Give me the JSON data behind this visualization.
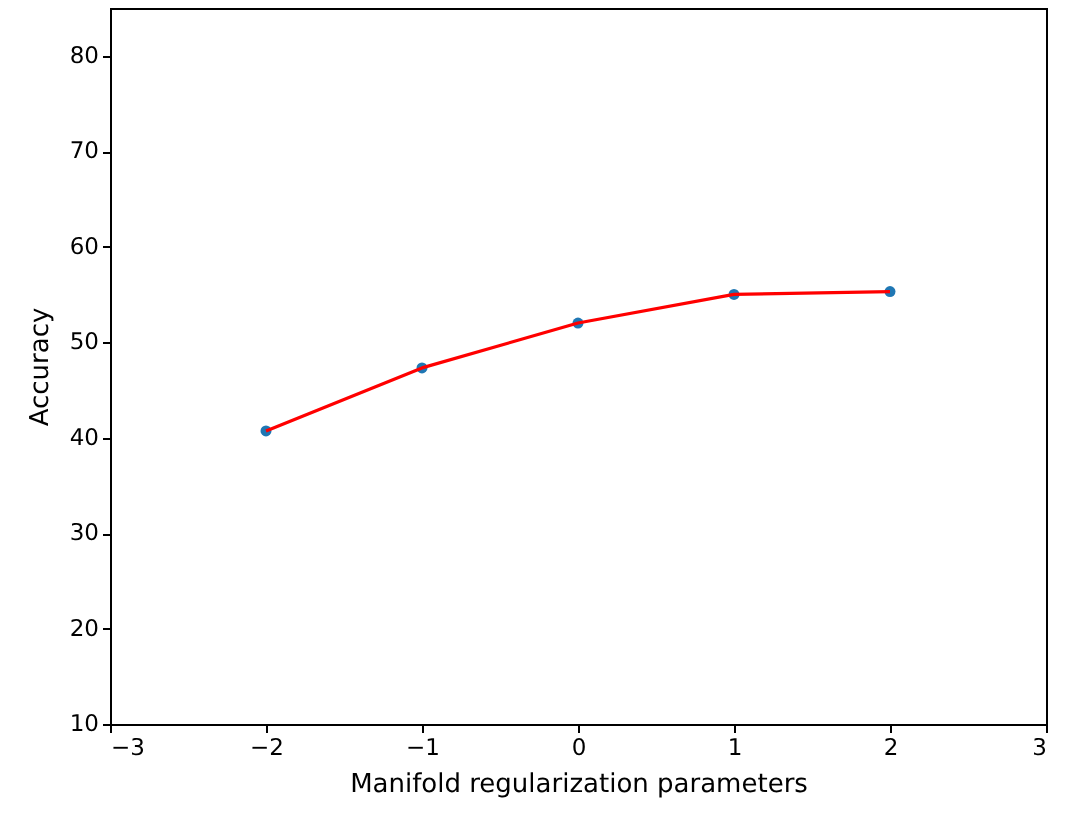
{
  "chart_data": {
    "type": "line",
    "xlabel": "Manifold regularization parameters",
    "ylabel": "Accuracy",
    "x": [
      -2,
      -1,
      0,
      1,
      2
    ],
    "series": [
      {
        "type": "scatter",
        "color": "#1f77b4",
        "values": [
          40.7,
          47.3,
          52.0,
          55.0,
          55.3
        ]
      },
      {
        "color": "#ff0000",
        "values": [
          40.7,
          47.3,
          52.0,
          55.0,
          55.3
        ]
      }
    ],
    "xlim": [
      -3,
      3
    ],
    "xticks": [
      -3,
      -2,
      -1,
      0,
      1,
      2,
      3
    ],
    "ylim": [
      10,
      85
    ],
    "yticks": [
      10,
      20,
      30,
      40,
      50,
      60,
      70,
      80
    ],
    "grid": false
  }
}
